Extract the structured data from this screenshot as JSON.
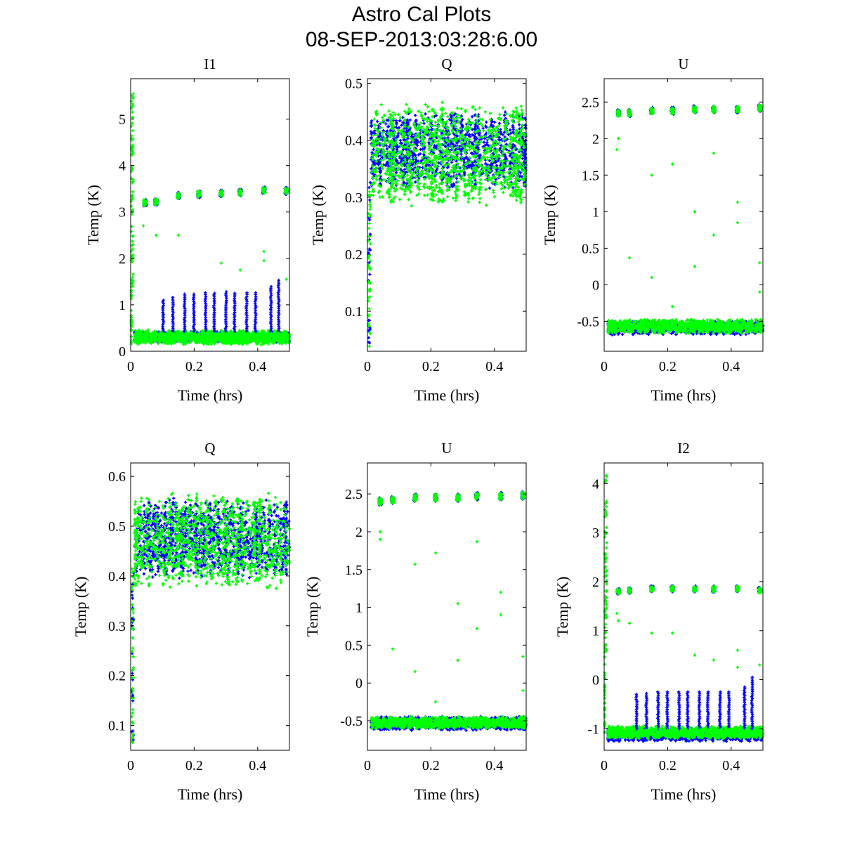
{
  "title": "Astro Cal Plots",
  "subtitle": "08-SEP-2013:03:28:6.00",
  "colors": {
    "series_a": "#0000ff",
    "series_b": "#00ff00"
  },
  "chart_data": [
    {
      "type": "scatter",
      "title": "I1",
      "xlabel": "Time (hrs)",
      "ylabel": "Temp (K)",
      "xlim": [
        0,
        0.5
      ],
      "ylim": [
        0,
        5.87
      ],
      "xticks": [
        0,
        0.2,
        0.4
      ],
      "xtick_labels": [
        "0",
        "0.2",
        "0.4"
      ],
      "yticks": [
        0,
        1,
        2,
        3,
        4,
        5
      ],
      "ytick_labels": [
        "0",
        "1",
        "2",
        "3",
        "4",
        "5"
      ],
      "start_spike": {
        "t": 0.005,
        "from": 1.4,
        "peak": 5.55
      },
      "baseline": {
        "blue": [
          0.2,
          0.42
        ],
        "green": [
          0.15,
          0.45
        ]
      },
      "spikes_blue": {
        "t": [
          0.102,
          0.133,
          0.17,
          0.199,
          0.236,
          0.263,
          0.3,
          0.327,
          0.365,
          0.393,
          0.442,
          0.466
        ],
        "top": [
          1.1,
          1.16,
          1.23,
          1.23,
          1.26,
          1.25,
          1.28,
          1.25,
          1.26,
          1.26,
          1.39,
          1.53
        ]
      },
      "clusters": {
        "t": [
          0.045,
          0.08,
          0.15,
          0.215,
          0.285,
          0.345,
          0.42,
          0.49
        ],
        "value": [
          3.2,
          3.22,
          3.35,
          3.38,
          3.4,
          3.42,
          3.47,
          3.45
        ],
        "spread": 0.12
      },
      "outliers": [
        [
          0.04,
          2.7
        ],
        [
          0.08,
          2.5
        ],
        [
          0.15,
          2.5
        ],
        [
          0.285,
          1.9
        ],
        [
          0.345,
          1.75
        ],
        [
          0.42,
          2.15
        ],
        [
          0.42,
          1.95
        ],
        [
          0.49,
          1.55
        ],
        [
          0.24,
          0.4
        ]
      ]
    },
    {
      "type": "scatter",
      "title": "Q",
      "xlabel": "Time (hrs)",
      "ylabel": "Temp (K)",
      "xlim": [
        0,
        0.5
      ],
      "ylim": [
        0.03,
        0.508
      ],
      "xticks": [
        0,
        0.2,
        0.4
      ],
      "xtick_labels": [
        "0",
        "0.2",
        "0.4"
      ],
      "yticks": [
        0.1,
        0.2,
        0.3,
        0.4,
        0.5
      ],
      "ytick_labels": [
        "0.1",
        "0.2",
        "0.3",
        "0.4",
        "0.5"
      ],
      "start_ramp": {
        "t": 0.005,
        "from": 0.03,
        "to": 0.33
      },
      "baseline": {
        "blue": [
          0.32,
          0.445
        ],
        "green": [
          0.29,
          0.46
        ]
      }
    },
    {
      "type": "scatter",
      "title": "U",
      "xlabel": "Time (hrs)",
      "ylabel": "Temp (K)",
      "xlim": [
        0,
        0.5
      ],
      "ylim": [
        -0.91,
        2.82
      ],
      "xticks": [
        0,
        0.2,
        0.4
      ],
      "xtick_labels": [
        "0",
        "0.2",
        "0.4"
      ],
      "yticks": [
        -0.5,
        0,
        0.5,
        1,
        1.5,
        2,
        2.5
      ],
      "ytick_labels": [
        "-0.5",
        "0",
        "0.5",
        "1",
        "1.5",
        "2",
        "2.5"
      ],
      "baseline": {
        "blue": [
          -0.68,
          -0.5
        ],
        "green": [
          -0.66,
          -0.48
        ]
      },
      "clusters": {
        "t": [
          0.045,
          0.08,
          0.15,
          0.215,
          0.285,
          0.345,
          0.42,
          0.49
        ],
        "value": [
          2.35,
          2.35,
          2.38,
          2.38,
          2.4,
          2.4,
          2.4,
          2.42
        ],
        "spread": 0.08
      },
      "outliers": [
        [
          0.04,
          1.85
        ],
        [
          0.045,
          2.0
        ],
        [
          0.08,
          0.37
        ],
        [
          0.15,
          1.5
        ],
        [
          0.15,
          0.1
        ],
        [
          0.215,
          1.65
        ],
        [
          0.215,
          -0.3
        ],
        [
          0.285,
          1.0
        ],
        [
          0.285,
          0.25
        ],
        [
          0.345,
          1.8
        ],
        [
          0.345,
          0.68
        ],
        [
          0.42,
          1.13
        ],
        [
          0.42,
          0.85
        ],
        [
          0.49,
          0.3
        ],
        [
          0.49,
          -0.1
        ]
      ]
    },
    {
      "type": "scatter",
      "title": "Q",
      "xlabel": "Time (hrs)",
      "ylabel": "Temp (K)",
      "xlim": [
        0,
        0.5
      ],
      "ylim": [
        0.05,
        0.627
      ],
      "xticks": [
        0,
        0.2,
        0.4
      ],
      "xtick_labels": [
        "0",
        "0.2",
        "0.4"
      ],
      "yticks": [
        0.1,
        0.2,
        0.3,
        0.4,
        0.5,
        0.6
      ],
      "ytick_labels": [
        "0.1",
        "0.2",
        "0.3",
        "0.4",
        "0.5",
        "0.6"
      ],
      "start_ramp": {
        "t": 0.005,
        "from": 0.06,
        "to": 0.43
      },
      "baseline": {
        "blue": [
          0.4,
          0.55
        ],
        "green": [
          0.38,
          0.56
        ]
      }
    },
    {
      "type": "scatter",
      "title": "U",
      "xlabel": "Time (hrs)",
      "ylabel": "Temp (K)",
      "xlim": [
        0,
        0.5
      ],
      "ylim": [
        -0.89,
        2.91
      ],
      "xticks": [
        0,
        0.2,
        0.4
      ],
      "xtick_labels": [
        "0",
        "0.2",
        "0.4"
      ],
      "yticks": [
        -0.5,
        0,
        0.5,
        1,
        1.5,
        2,
        2.5
      ],
      "ytick_labels": [
        "-0.5",
        "0",
        "0.5",
        "1",
        "1.5",
        "2",
        "2.5"
      ],
      "baseline": {
        "blue": [
          -0.62,
          -0.45
        ],
        "green": [
          -0.6,
          -0.45
        ]
      },
      "clusters": {
        "t": [
          0.04,
          0.08,
          0.15,
          0.215,
          0.285,
          0.345,
          0.42,
          0.49
        ],
        "value": [
          2.4,
          2.42,
          2.45,
          2.45,
          2.45,
          2.47,
          2.47,
          2.48
        ],
        "spread": 0.08
      },
      "outliers": [
        [
          0.04,
          1.9
        ],
        [
          0.04,
          2.0
        ],
        [
          0.08,
          0.45
        ],
        [
          0.15,
          1.57
        ],
        [
          0.15,
          0.15
        ],
        [
          0.215,
          1.72
        ],
        [
          0.215,
          -0.25
        ],
        [
          0.285,
          1.05
        ],
        [
          0.285,
          0.3
        ],
        [
          0.345,
          1.87
        ],
        [
          0.345,
          0.72
        ],
        [
          0.42,
          1.2
        ],
        [
          0.42,
          0.9
        ],
        [
          0.49,
          0.35
        ],
        [
          0.49,
          -0.1
        ]
      ]
    },
    {
      "type": "scatter",
      "title": "I2",
      "xlabel": "Time (hrs)",
      "ylabel": "Temp (K)",
      "xlim": [
        0,
        0.5
      ],
      "ylim": [
        -1.44,
        4.42
      ],
      "xticks": [
        0,
        0.2,
        0.4
      ],
      "xtick_labels": [
        "0",
        "0.2",
        "0.4"
      ],
      "yticks": [
        -1,
        0,
        1,
        2,
        3,
        4
      ],
      "ytick_labels": [
        "-1",
        "0",
        "1",
        "2",
        "3",
        "4"
      ],
      "start_spike": {
        "t": 0.005,
        "from": 0.5,
        "peak": 4.2
      },
      "baseline": {
        "blue": [
          -1.25,
          -1.0
        ],
        "green": [
          -1.2,
          -0.95
        ]
      },
      "spikes_blue": {
        "t": [
          0.102,
          0.133,
          0.17,
          0.199,
          0.236,
          0.263,
          0.3,
          0.327,
          0.365,
          0.393,
          0.442,
          0.466
        ],
        "top": [
          -0.3,
          -0.28,
          -0.25,
          -0.25,
          -0.25,
          -0.25,
          -0.25,
          -0.25,
          -0.25,
          -0.25,
          -0.15,
          0.05
        ]
      },
      "clusters": {
        "t": [
          0.045,
          0.08,
          0.15,
          0.215,
          0.285,
          0.345,
          0.42,
          0.49
        ],
        "value": [
          1.8,
          1.82,
          1.85,
          1.85,
          1.85,
          1.85,
          1.85,
          1.82
        ],
        "spread": 0.1
      },
      "outliers": [
        [
          0.04,
          1.35
        ],
        [
          0.045,
          1.2
        ],
        [
          0.08,
          1.15
        ],
        [
          0.15,
          0.95
        ],
        [
          0.215,
          0.95
        ],
        [
          0.285,
          0.5
        ],
        [
          0.345,
          0.4
        ],
        [
          0.42,
          0.6
        ],
        [
          0.42,
          0.25
        ],
        [
          0.49,
          0.3
        ]
      ]
    }
  ]
}
